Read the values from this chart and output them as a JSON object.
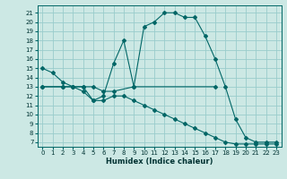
{
  "xlabel": "Humidex (Indice chaleur)",
  "bg_color": "#cce8e4",
  "grid_color": "#99cccc",
  "line_color": "#006666",
  "x_ticks": [
    0,
    1,
    2,
    3,
    4,
    5,
    6,
    7,
    8,
    9,
    10,
    11,
    12,
    13,
    14,
    15,
    16,
    17,
    18,
    19,
    20,
    21,
    22,
    23
  ],
  "y_ticks": [
    7,
    8,
    9,
    10,
    11,
    12,
    13,
    14,
    15,
    16,
    17,
    18,
    19,
    20,
    21
  ],
  "ylim": [
    6.5,
    21.8
  ],
  "xlim": [
    -0.5,
    23.5
  ],
  "curve1_x": [
    0,
    1,
    2,
    3,
    4,
    5,
    6,
    7,
    8,
    9,
    10,
    11,
    12,
    13,
    14,
    15,
    16,
    17,
    18,
    19,
    20,
    21,
    22,
    23
  ],
  "curve1_y": [
    15,
    14.5,
    13.5,
    13,
    13,
    11.5,
    12,
    15.5,
    18,
    13,
    19.5,
    20,
    21,
    21,
    20.5,
    20.5,
    18.5,
    16,
    13,
    9.5,
    7.5,
    7,
    7,
    7
  ],
  "curve2_x": [
    0,
    2,
    3,
    4,
    5,
    6,
    7,
    9,
    17
  ],
  "curve2_y": [
    13,
    13,
    13,
    13,
    13,
    12.5,
    12.5,
    13,
    13
  ],
  "curve3_x": [
    0,
    2,
    3,
    4,
    5,
    6,
    7,
    8,
    9,
    10,
    11,
    12,
    13,
    14,
    15,
    16,
    17,
    18,
    19,
    20,
    21,
    22,
    23
  ],
  "curve3_y": [
    13,
    13,
    13,
    12.5,
    11.5,
    11.5,
    12,
    12,
    11.5,
    11,
    10.5,
    10,
    9.5,
    9,
    8.5,
    8,
    7.5,
    7,
    6.8,
    6.8,
    6.8,
    6.8,
    6.8
  ]
}
